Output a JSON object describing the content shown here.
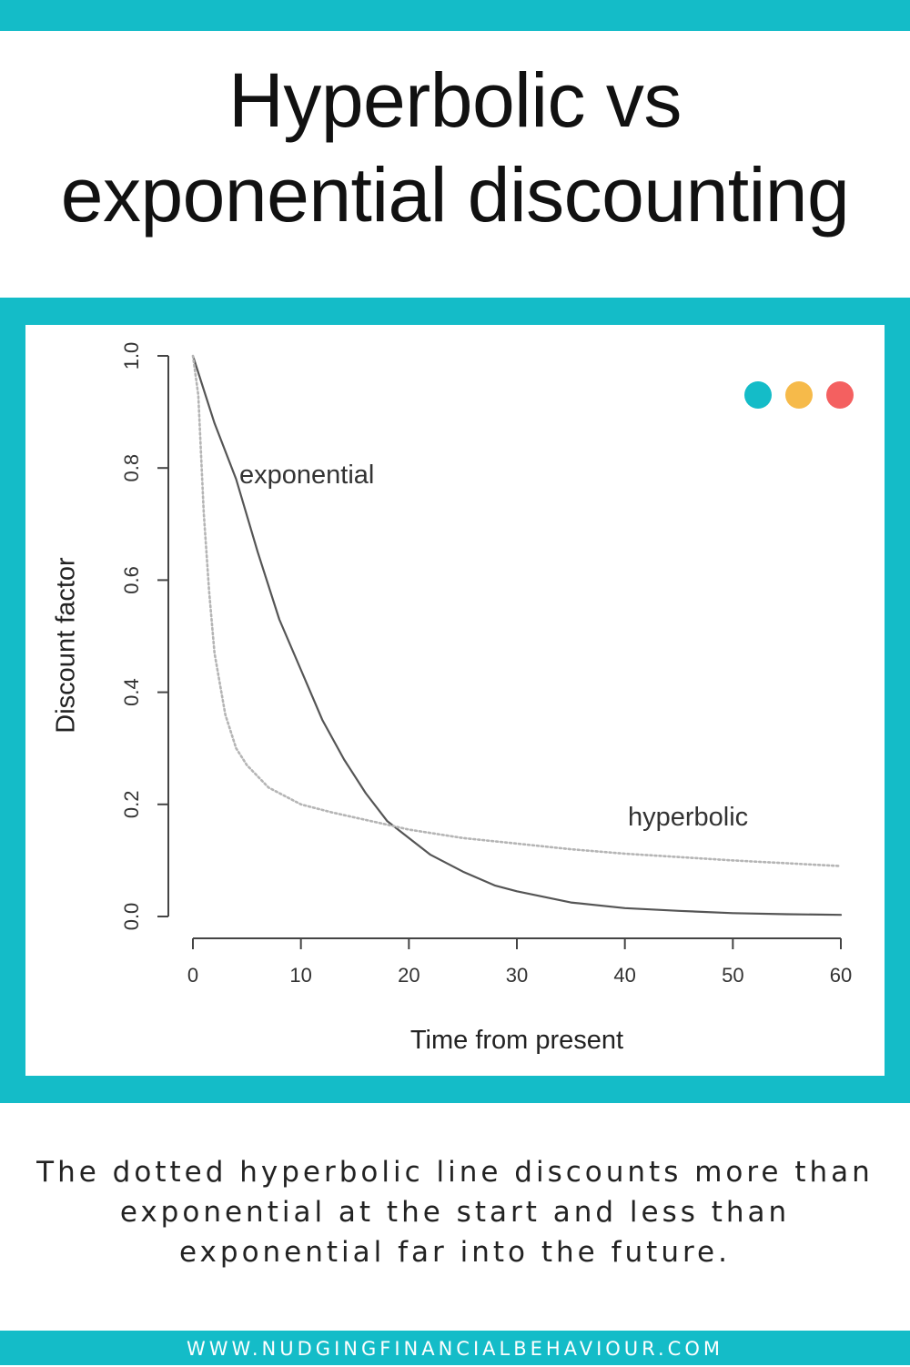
{
  "page": {
    "title_line1": "Hyperbolic vs",
    "title_line2": "exponential discounting",
    "caption": "The dotted hyperbolic line discounts more than exponential at the start and less than exponential far into the future.",
    "footer": "WWW.NUDGINGFINANCIALBEHAVIOUR.COM",
    "colors": {
      "accent": "#14bcc8",
      "dot_teal": "#14bcc8",
      "dot_yellow": "#f6ba4a",
      "dot_red": "#f46060",
      "curve_exponential": "#555555",
      "curve_hyperbolic": "#b5b5b5"
    },
    "decor": {
      "dots": [
        "teal-dot",
        "yellow-dot",
        "red-dot"
      ]
    }
  },
  "chart_data": {
    "type": "line",
    "title": "",
    "xlabel": "Time from present",
    "ylabel": "Discount factor",
    "xlim": [
      0,
      60
    ],
    "ylim": [
      0,
      1
    ],
    "x_ticks": [
      "0",
      "10",
      "20",
      "30",
      "40",
      "50",
      "60"
    ],
    "y_ticks": [
      "0.0",
      "0.2",
      "0.4",
      "0.6",
      "0.8",
      "1.0"
    ],
    "grid": false,
    "legend": "none",
    "annotations": [
      "exponential",
      "hyperbolic"
    ],
    "series": [
      {
        "style": "solid",
        "x": [
          0,
          2,
          4,
          6,
          8,
          10,
          12,
          14,
          16,
          18,
          20,
          22,
          25,
          28,
          30,
          35,
          40,
          45,
          50,
          55,
          60
        ],
        "y": [
          1.0,
          0.88,
          0.78,
          0.65,
          0.53,
          0.44,
          0.35,
          0.28,
          0.22,
          0.17,
          0.14,
          0.11,
          0.08,
          0.055,
          0.045,
          0.025,
          0.015,
          0.01,
          0.006,
          0.004,
          0.003
        ]
      },
      {
        "style": "dotted",
        "x": [
          0,
          0.5,
          1,
          1.5,
          2,
          3,
          4,
          5,
          7,
          10,
          13,
          17,
          20,
          25,
          30,
          35,
          40,
          45,
          50,
          55,
          60
        ],
        "y": [
          1.0,
          0.93,
          0.72,
          0.58,
          0.47,
          0.36,
          0.3,
          0.27,
          0.23,
          0.2,
          0.185,
          0.168,
          0.155,
          0.14,
          0.13,
          0.12,
          0.112,
          0.106,
          0.1,
          0.095,
          0.09
        ]
      }
    ]
  }
}
